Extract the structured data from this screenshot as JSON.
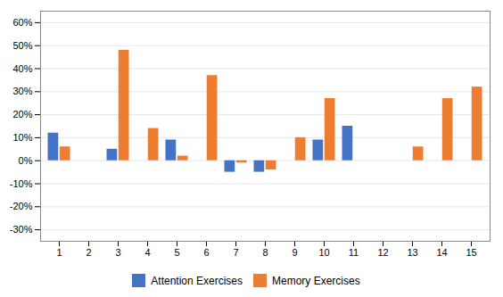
{
  "chart_data": {
    "type": "bar",
    "categories": [
      "1",
      "2",
      "3",
      "4",
      "5",
      "6",
      "7",
      "8",
      "9",
      "10",
      "11",
      "12",
      "13",
      "14",
      "15"
    ],
    "series": [
      {
        "name": "Attention Exercises",
        "color": "#4472C4",
        "values": [
          0.12,
          0,
          0.05,
          0,
          0.09,
          0,
          -0.05,
          -0.05,
          0,
          0.09,
          0.15,
          0,
          0,
          0,
          0
        ]
      },
      {
        "name": "Memory Exercises",
        "color": "#ED7D31",
        "values": [
          0.06,
          0,
          0.48,
          0.14,
          0.02,
          0.37,
          -0.01,
          -0.04,
          0.1,
          0.27,
          0,
          0,
          0.06,
          0.27,
          0.32
        ]
      }
    ],
    "ylim": [
      -0.35,
      0.65
    ],
    "yticks": [
      {
        "value": -0.3,
        "label": "-30%"
      },
      {
        "value": -0.2,
        "label": "-20%"
      },
      {
        "value": -0.1,
        "label": "-10%"
      },
      {
        "value": 0,
        "label": "0%"
      },
      {
        "value": 0.1,
        "label": "10%"
      },
      {
        "value": 0.2,
        "label": "20%"
      },
      {
        "value": 0.3,
        "label": "30%"
      },
      {
        "value": 0.4,
        "label": "40%"
      },
      {
        "value": 0.5,
        "label": "50%"
      },
      {
        "value": 0.6,
        "label": "60%"
      }
    ],
    "grid": true,
    "legend": "bottom"
  }
}
